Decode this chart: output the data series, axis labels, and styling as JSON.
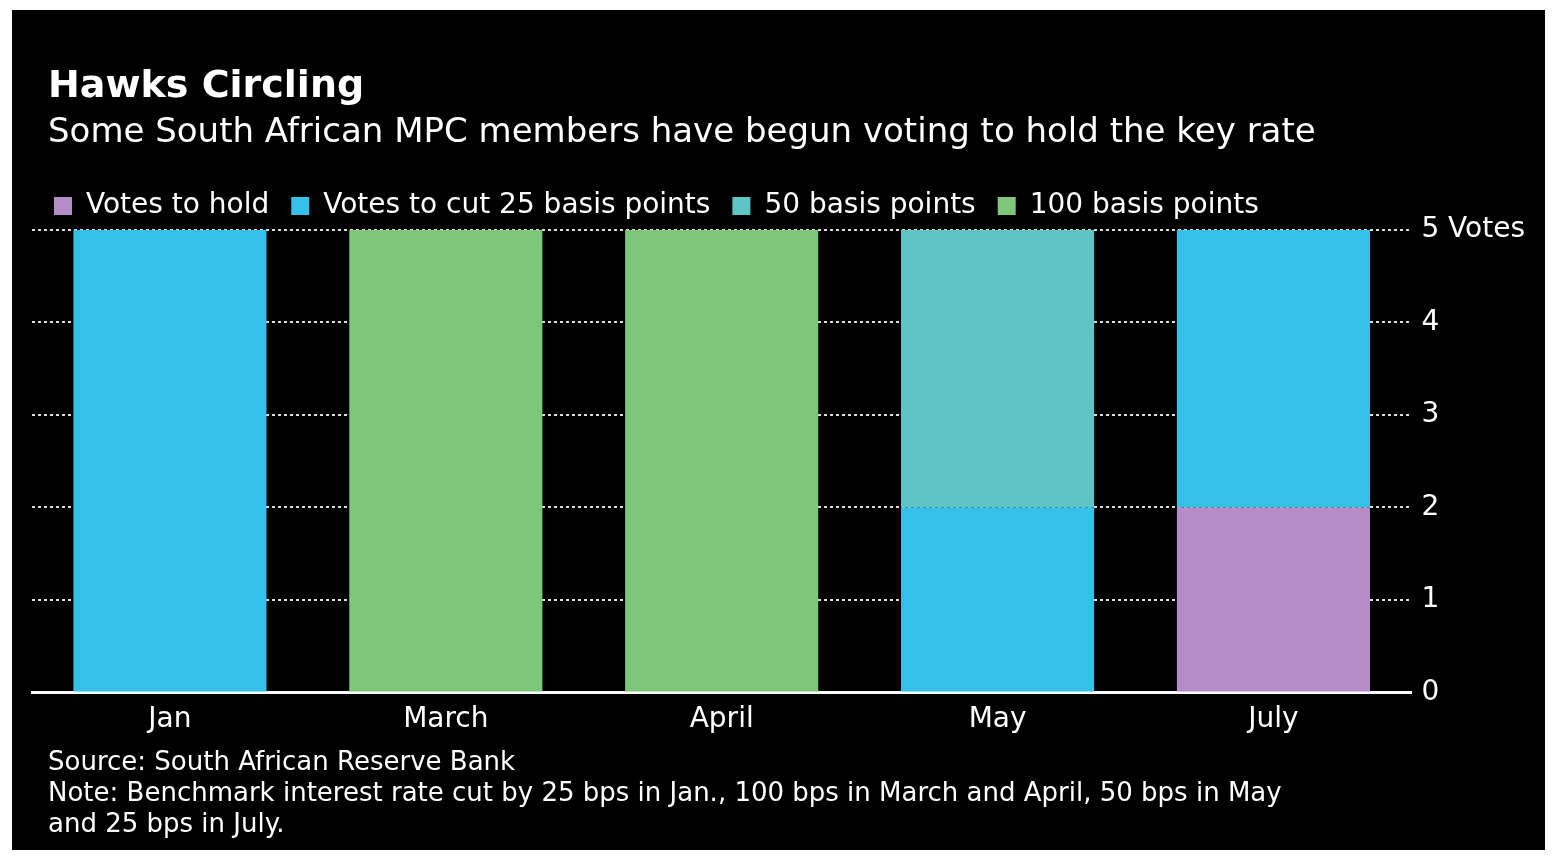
{
  "chart_data": {
    "type": "bar",
    "title": "Hawks Circling",
    "subtitle": "Some South African MPC members have begun voting to hold the key rate",
    "categories": [
      "Jan",
      "March",
      "April",
      "May",
      "July"
    ],
    "series": [
      {
        "name": "Votes to hold",
        "color": "#b48cc8",
        "values": [
          null,
          null,
          null,
          null,
          2
        ]
      },
      {
        "name": "Votes to cut 25 basis points",
        "color": "#35c0e8",
        "values": [
          5,
          null,
          null,
          2,
          3
        ]
      },
      {
        "name": "50 basis points",
        "color": "#5fc4c4",
        "values": [
          null,
          null,
          null,
          3,
          null
        ]
      },
      {
        "name": "100 basis points",
        "color": "#7dc67a",
        "values": [
          null,
          5,
          5,
          null,
          null
        ]
      }
    ],
    "stacked": true,
    "ylim": [
      0,
      5
    ],
    "yticks": [
      0,
      1,
      2,
      3,
      4,
      {
        "value": 5,
        "label": "5 Votes"
      }
    ],
    "grid": "y",
    "legend": "top left",
    "annotations": [
      "Source: South African Reserve Bank",
      "Note: Benchmark interest rate cut by 25 bps in Jan., 100 bps in March and April, 50 bps in May and 25 bps in July."
    ]
  }
}
